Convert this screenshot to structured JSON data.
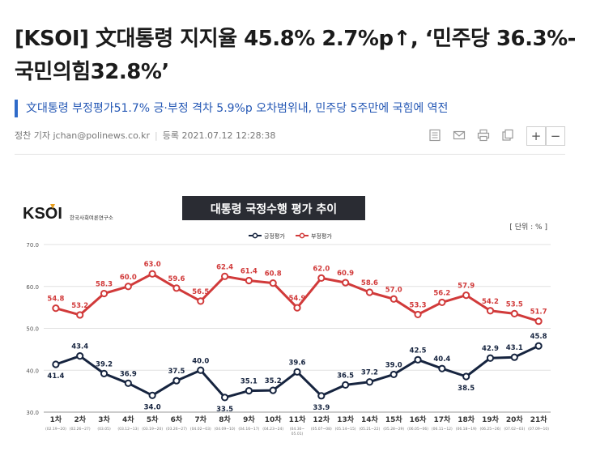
{
  "article": {
    "headline": "[KSOI] 文대통령 지지율 45.8% 2.7%p↑, ‘민주당 36.3%-국민의힘32.8%’",
    "subhead": "文대통령 부정평가51.7% 긍·부정 격차 5.9%p 오차범위내, 민주당 5주만에 국힘에 역전",
    "byline": "정찬 기자 jchan@polinews.co.kr",
    "date": "등록 2021.07.12 12:28:38"
  },
  "toolbar": {
    "plus_label": "+",
    "minus_label": "−",
    "icons": [
      "list-icon",
      "mail-icon",
      "print-icon",
      "copy-icon"
    ]
  },
  "logo": {
    "text": "KSOI",
    "org": "한국사회여론연구소",
    "accent": "#e8a020"
  },
  "chart_data": {
    "type": "line",
    "title": "대통령 국정수행 평가 추이",
    "unit_label": "[ 단위 : % ]",
    "legend_placement": "top-center",
    "grid": true,
    "ylim": [
      30,
      70
    ],
    "yticks": [
      "30.0",
      "40.0",
      "50.0",
      "60.0",
      "70.0"
    ],
    "categories": [
      "1차",
      "2차",
      "3차",
      "4차",
      "5차",
      "6차",
      "7차",
      "8차",
      "9차",
      "10차",
      "11차",
      "12차",
      "13차",
      "14차",
      "15차",
      "16차",
      "17차",
      "18차",
      "19차",
      "20차",
      "21차"
    ],
    "dates": [
      "(02.19~20)",
      "(02.26~27)",
      "(03.05)",
      "(03.12~13)",
      "(03.19~20)",
      "(03.26~27)",
      "(04.02~03)",
      "(04.09~10)",
      "(04.16~17)",
      "(04.23~24)",
      "(04.30~05.01)",
      "(05.07~08)",
      "(05.14~15)",
      "(05.21~22)",
      "(05.28~29)",
      "(06.05~06)",
      "(06.11~12)",
      "(06.18~19)",
      "(06.25~26)",
      "(07.02~03)",
      "(07.09~10)"
    ],
    "series": [
      {
        "name": "긍정평가",
        "color": "#16243f",
        "values": [
          41.4,
          43.4,
          39.2,
          36.9,
          34.0,
          37.5,
          40.0,
          33.5,
          35.1,
          35.2,
          39.6,
          33.9,
          36.5,
          37.2,
          39.0,
          42.5,
          40.4,
          38.5,
          42.9,
          43.1,
          45.8
        ]
      },
      {
        "name": "부정평가",
        "color": "#d13a3a",
        "values": [
          54.8,
          53.2,
          58.3,
          60.0,
          63.0,
          59.6,
          56.5,
          62.4,
          61.4,
          60.8,
          54.9,
          62.0,
          60.9,
          58.6,
          57.0,
          53.3,
          56.2,
          57.9,
          54.2,
          53.5,
          51.7
        ]
      }
    ]
  }
}
